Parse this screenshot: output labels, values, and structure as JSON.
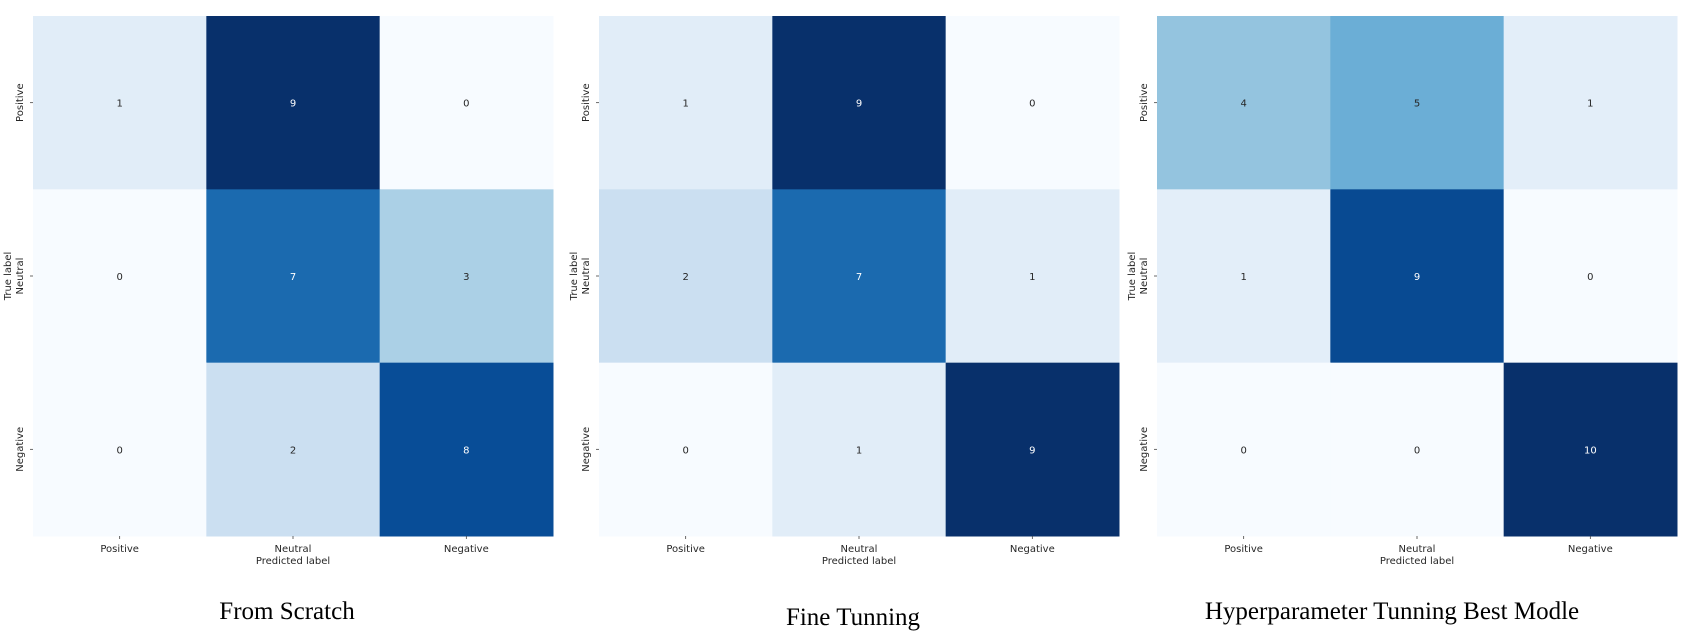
{
  "chart_data": [
    {
      "type": "heatmap",
      "title": "From Scratch",
      "xlabel": "Predicted label",
      "ylabel": "True label",
      "x_categories": [
        "Positive",
        "Neutral",
        "Negative"
      ],
      "y_categories": [
        "Positive",
        "Neutral",
        "Negative"
      ],
      "values": [
        [
          1,
          9,
          0
        ],
        [
          0,
          7,
          3
        ],
        [
          0,
          2,
          8
        ]
      ],
      "colormap": "Blues",
      "vmin": 0,
      "vmax": 9,
      "colorbar": false
    },
    {
      "type": "heatmap",
      "title": "Fine Tunning",
      "xlabel": "Predicted label",
      "ylabel": "True label",
      "x_categories": [
        "Positive",
        "Neutral",
        "Negative"
      ],
      "y_categories": [
        "Positive",
        "Neutral",
        "Negative"
      ],
      "values": [
        [
          1,
          9,
          0
        ],
        [
          2,
          7,
          1
        ],
        [
          0,
          1,
          9
        ]
      ],
      "colormap": "Blues",
      "vmin": 0,
      "vmax": 9,
      "colorbar": false
    },
    {
      "type": "heatmap",
      "title": "Hyperparameter Tunning Best Modle",
      "xlabel": "Predicted label",
      "ylabel": "True label",
      "x_categories": [
        "Positive",
        "Neutral",
        "Negative"
      ],
      "y_categories": [
        "Positive",
        "Neutral",
        "Negative"
      ],
      "values": [
        [
          4,
          5,
          1
        ],
        [
          1,
          9,
          0
        ],
        [
          0,
          0,
          10
        ]
      ],
      "colormap": "Blues",
      "vmin": 0,
      "vmax": 10,
      "colorbar": false
    }
  ],
  "colors": {
    "low_text": "#262626",
    "high_text": "#ffffff",
    "axis_text": "#262626"
  }
}
